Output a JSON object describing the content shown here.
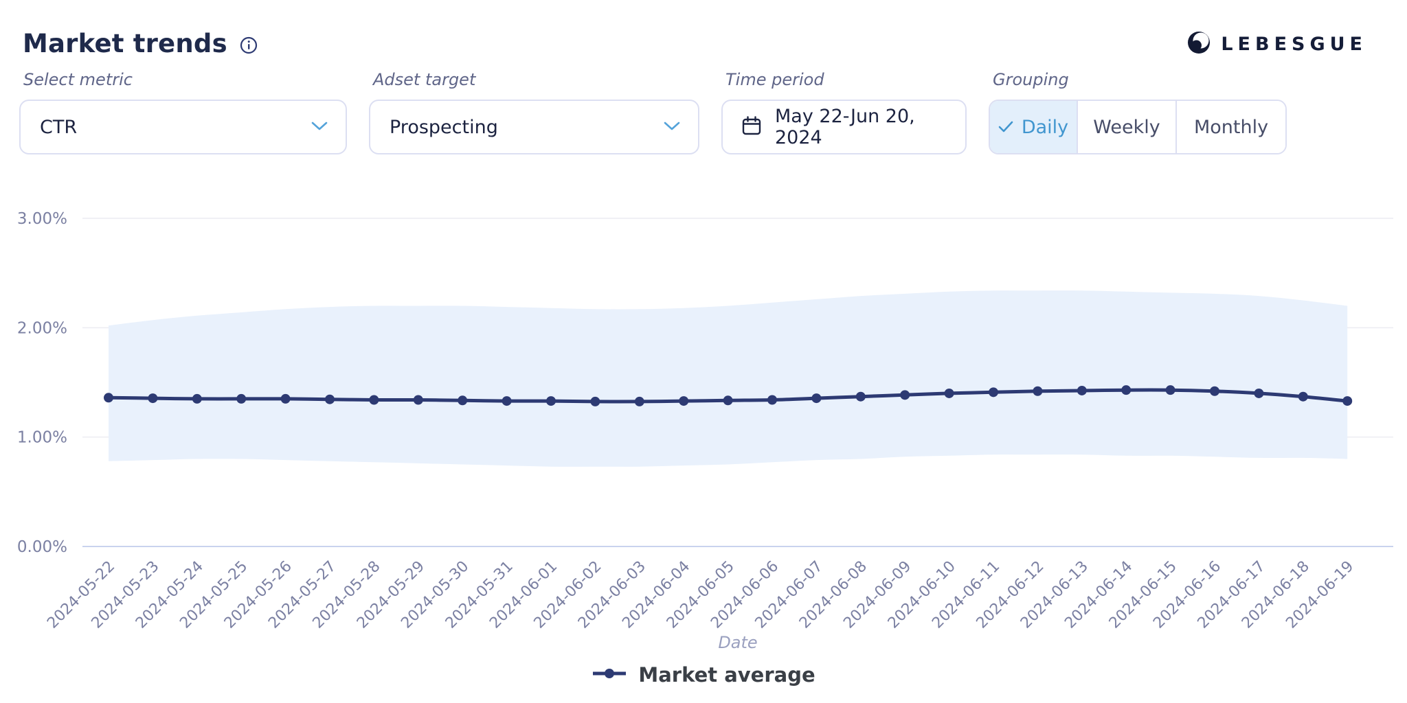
{
  "header": {
    "title": "Market trends",
    "brand": "LEBESGUE"
  },
  "filters": {
    "select_metric": {
      "label": "Select metric",
      "value": "CTR"
    },
    "adset_target": {
      "label": "Adset target",
      "value": "Prospecting"
    },
    "time_period": {
      "label": "Time period",
      "value": "May 22-Jun 20, 2024"
    },
    "grouping": {
      "label": "Grouping",
      "options": [
        "Daily",
        "Weekly",
        "Monthly"
      ],
      "selected": "Daily"
    }
  },
  "icons": {
    "info": "i-in-circle",
    "chevron_down": "v",
    "calendar": "calendar-grid",
    "check": "check-mark",
    "logo_mark": "swirl-circle",
    "legend_marker": "line-with-dot"
  },
  "colors": {
    "line": "#2d3a73",
    "band": "#e9f1fc",
    "grid": "#ececf2",
    "axis_zero": "#c9d3ee",
    "tick_text": "#7b80a2",
    "accent_blue": "#4196cf",
    "selected_bg": "#e3effb",
    "border": "#dcdff2",
    "title_text": "#1f2a4b",
    "label_text": "#5f6588",
    "legend_text": "#3a3f46"
  },
  "chart_data": {
    "type": "line",
    "title": "",
    "xlabel": "Date",
    "ylabel": "",
    "ylim": [
      0,
      3
    ],
    "yticks": [
      "0.00%",
      "1.00%",
      "2.00%",
      "3.00%"
    ],
    "grid": true,
    "legend": "Market average",
    "legend_position": "bottom",
    "x": [
      "2024-05-22",
      "2024-05-23",
      "2024-05-24",
      "2024-05-25",
      "2024-05-26",
      "2024-05-27",
      "2024-05-28",
      "2024-05-29",
      "2024-05-30",
      "2024-05-31",
      "2024-06-01",
      "2024-06-02",
      "2024-06-03",
      "2024-06-04",
      "2024-06-05",
      "2024-06-06",
      "2024-06-07",
      "2024-06-08",
      "2024-06-09",
      "2024-06-10",
      "2024-06-11",
      "2024-06-12",
      "2024-06-13",
      "2024-06-14",
      "2024-06-15",
      "2024-06-16",
      "2024-06-17",
      "2024-06-18",
      "2024-06-19"
    ],
    "series": [
      {
        "name": "Market average",
        "unit": "%",
        "values": [
          1.36,
          1.355,
          1.35,
          1.35,
          1.35,
          1.345,
          1.34,
          1.34,
          1.335,
          1.33,
          1.33,
          1.325,
          1.325,
          1.33,
          1.335,
          1.34,
          1.355,
          1.37,
          1.385,
          1.4,
          1.41,
          1.42,
          1.425,
          1.43,
          1.43,
          1.42,
          1.4,
          1.37,
          1.33
        ],
        "band_upper": [
          2.02,
          2.07,
          2.11,
          2.14,
          2.17,
          2.19,
          2.2,
          2.2,
          2.2,
          2.19,
          2.18,
          2.17,
          2.17,
          2.18,
          2.2,
          2.23,
          2.26,
          2.29,
          2.31,
          2.33,
          2.34,
          2.34,
          2.34,
          2.33,
          2.32,
          2.31,
          2.29,
          2.25,
          2.2
        ],
        "band_lower": [
          0.78,
          0.79,
          0.8,
          0.8,
          0.79,
          0.78,
          0.77,
          0.76,
          0.75,
          0.74,
          0.73,
          0.73,
          0.73,
          0.74,
          0.75,
          0.77,
          0.79,
          0.8,
          0.82,
          0.83,
          0.84,
          0.84,
          0.84,
          0.83,
          0.83,
          0.82,
          0.81,
          0.81,
          0.8
        ]
      }
    ]
  }
}
